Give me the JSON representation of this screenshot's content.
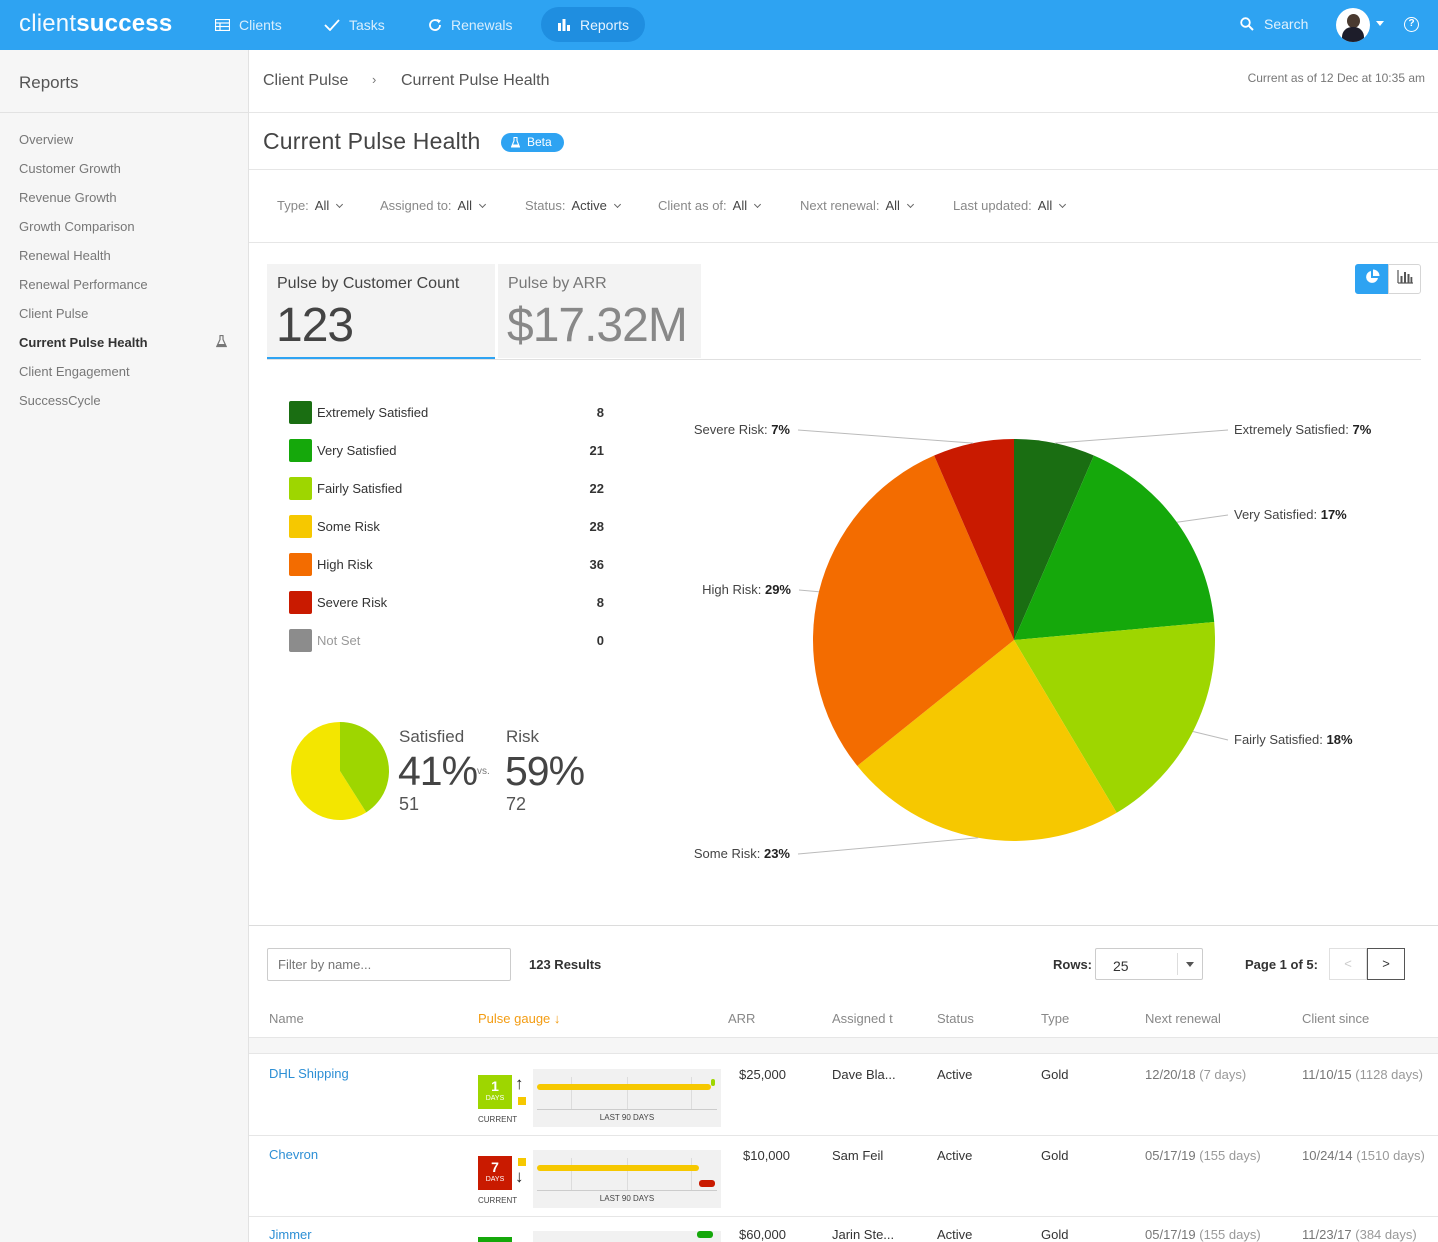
{
  "topbar": {
    "logo_part1": "client",
    "logo_part2": "success",
    "nav": [
      {
        "label": "Clients",
        "icon": "table-icon"
      },
      {
        "label": "Tasks",
        "icon": "checkmark-icon"
      },
      {
        "label": "Renewals",
        "icon": "refresh-icon"
      },
      {
        "label": "Reports",
        "icon": "bar-chart-icon",
        "active": true
      }
    ],
    "search_label": "Search"
  },
  "sidebar": {
    "title": "Reports",
    "items": [
      {
        "label": "Overview"
      },
      {
        "label": "Customer Growth"
      },
      {
        "label": "Revenue Growth"
      },
      {
        "label": "Growth Comparison"
      },
      {
        "label": "Renewal Health"
      },
      {
        "label": "Renewal Performance"
      },
      {
        "label": "Client Pulse"
      },
      {
        "label": "Current Pulse Health",
        "active": true
      },
      {
        "label": "Client Engagement"
      },
      {
        "label": "SuccessCycle"
      }
    ]
  },
  "breadcrumb": {
    "parent": "Client Pulse",
    "sep": "›",
    "current": "Current Pulse Health"
  },
  "as_of": "Current as of 12 Dec at 10:35 am",
  "page": {
    "title": "Current Pulse Health",
    "badge": "Beta"
  },
  "filters": [
    {
      "label": "Type:",
      "value": "All"
    },
    {
      "label": "Assigned to:",
      "value": "All"
    },
    {
      "label": "Status:",
      "value": "Active"
    },
    {
      "label": "Client as of:",
      "value": "All"
    },
    {
      "label": "Next renewal:",
      "value": "All"
    },
    {
      "label": "Last updated:",
      "value": "All"
    }
  ],
  "metrics": {
    "count_label": "Pulse by Customer Count",
    "count_value": "123",
    "arr_label": "Pulse by ARR",
    "arr_value": "$17.32M"
  },
  "legend": [
    {
      "name": "Extremely Satisfied",
      "count": "8",
      "color": "#1a6e12"
    },
    {
      "name": "Very Satisfied",
      "count": "21",
      "color": "#15a80b"
    },
    {
      "name": "Fairly Satisfied",
      "count": "22",
      "color": "#9ed600"
    },
    {
      "name": "Some Risk",
      "count": "28",
      "color": "#f6c800"
    },
    {
      "name": "High Risk",
      "count": "36",
      "color": "#f36c00"
    },
    {
      "name": "Severe Risk",
      "count": "8",
      "color": "#c91a00"
    },
    {
      "name": "Not Set",
      "count": "0",
      "color": "#8c8c8c"
    }
  ],
  "summary": {
    "satisfied_label": "Satisfied",
    "satisfied_pct": "41%",
    "satisfied_count": "51",
    "vs": "vs.",
    "risk_label": "Risk",
    "risk_pct": "59%",
    "risk_count": "72",
    "satisfied_share": 0.41,
    "colors": {
      "satisfied": "#9ed600",
      "risk": "#f3e600"
    }
  },
  "chart_data": {
    "type": "pie",
    "slices": [
      {
        "name": "Extremely Satisfied",
        "value": 8,
        "pct_label": "7%",
        "color": "#1a6e12"
      },
      {
        "name": "Very Satisfied",
        "value": 21,
        "pct_label": "17%",
        "color": "#15a80b"
      },
      {
        "name": "Fairly Satisfied",
        "value": 22,
        "pct_label": "18%",
        "color": "#9ed600"
      },
      {
        "name": "Some Risk",
        "value": 28,
        "pct_label": "23%",
        "color": "#f6c800"
      },
      {
        "name": "High Risk",
        "value": 36,
        "pct_label": "29%",
        "color": "#f36c00"
      },
      {
        "name": "Severe Risk",
        "value": 8,
        "pct_label": "7%",
        "color": "#c91a00"
      }
    ]
  },
  "table": {
    "filter_placeholder": "Filter by name...",
    "results": "123 Results",
    "rows_label": "Rows:",
    "rows_value": "25",
    "page_label": "Page 1 of 5:",
    "prev": "<",
    "next": ">",
    "headers": {
      "name": "Name",
      "pulse": "Pulse gauge",
      "arr": "ARR",
      "assigned": "Assigned t",
      "status": "Status",
      "type": "Type",
      "next_renewal": "Next renewal",
      "client_since": "Client since"
    },
    "rows": [
      {
        "name": "DHL Shipping",
        "days": "1",
        "days_label": "DAYS",
        "current": "CURRENT",
        "last90": "LAST 90 DAYS",
        "arr": "$25,000",
        "assigned": "Dave Bla...",
        "status": "Active",
        "type": "Gold",
        "renewal": "12/20/18",
        "renewal_rel": "(7 days)",
        "since": "11/10/15",
        "since_rel": "(1128 days)",
        "badge_color": "#9ed600",
        "trend": "↑",
        "square_color": "#f6c800",
        "end_color": "#9ed600"
      },
      {
        "name": "Chevron",
        "days": "7",
        "days_label": "DAYS",
        "current": "CURRENT",
        "last90": "LAST 90 DAYS",
        "arr": "$10,000",
        "assigned": "Sam Feil",
        "status": "Active",
        "type": "Gold",
        "renewal": "05/17/19",
        "renewal_rel": "(155 days)",
        "since": "10/24/14",
        "since_rel": "(1510 days)",
        "badge_color": "#c91a00",
        "trend": "↓",
        "square_color": "#f6c800",
        "end_color": "#c91a00"
      },
      {
        "name": "Jimmer",
        "days": "",
        "days_label": "",
        "current": "",
        "last90": "",
        "arr": "$60,000",
        "assigned": "Jarin Ste...",
        "status": "Active",
        "type": "Gold",
        "renewal": "05/17/19",
        "renewal_rel": "(155 days)",
        "since": "11/23/17",
        "since_rel": "(384 days)",
        "badge_color": "#15a80b",
        "trend": "",
        "square_color": "#15a80b",
        "end_color": "#15a80b"
      }
    ]
  }
}
